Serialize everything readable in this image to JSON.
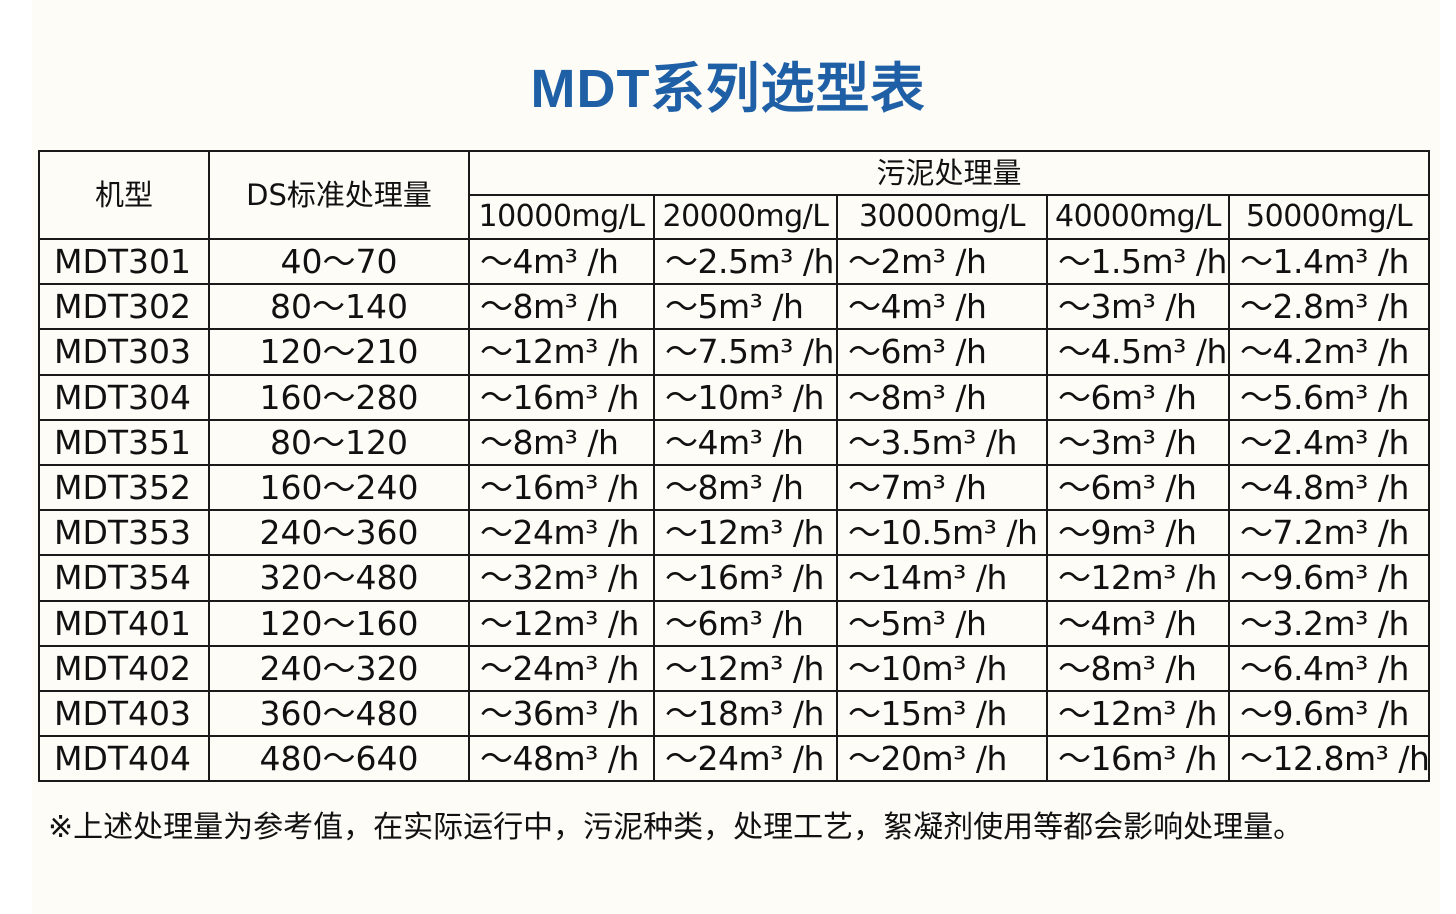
{
  "title": "MDT系列选型表",
  "table": {
    "header": {
      "model": "机型",
      "ds": "DS标准处理量",
      "sludge": "污泥处理量",
      "concentrations": [
        "10000mg/L",
        "20000mg/L",
        "30000mg/L",
        "40000mg/L",
        "50000mg/L"
      ]
    },
    "rows": [
      {
        "model": "MDT301",
        "ds": "40～70",
        "values": [
          "～4m³ /h",
          "～2.5m³ /h",
          "～2m³ /h",
          "～1.5m³ /h",
          "～1.4m³ /h"
        ]
      },
      {
        "model": "MDT302",
        "ds": "80～140",
        "values": [
          "～8m³ /h",
          "～5m³ /h",
          "～4m³ /h",
          "～3m³ /h",
          "～2.8m³ /h"
        ]
      },
      {
        "model": "MDT303",
        "ds": "120～210",
        "values": [
          "～12m³ /h",
          "～7.5m³ /h",
          "～6m³ /h",
          "～4.5m³ /h",
          "～4.2m³ /h"
        ]
      },
      {
        "model": "MDT304",
        "ds": "160～280",
        "values": [
          "～16m³ /h",
          "～10m³ /h",
          "～8m³ /h",
          "～6m³ /h",
          "～5.6m³ /h"
        ]
      },
      {
        "model": "MDT351",
        "ds": "80～120",
        "values": [
          "～8m³ /h",
          "～4m³ /h",
          "～3.5m³ /h",
          "～3m³ /h",
          "～2.4m³ /h"
        ]
      },
      {
        "model": "MDT352",
        "ds": "160～240",
        "values": [
          "～16m³ /h",
          "～8m³ /h",
          "～7m³ /h",
          "～6m³ /h",
          "～4.8m³ /h"
        ]
      },
      {
        "model": "MDT353",
        "ds": "240～360",
        "values": [
          "～24m³ /h",
          "～12m³ /h",
          "～10.5m³ /h",
          "～9m³ /h",
          "～7.2m³ /h"
        ]
      },
      {
        "model": "MDT354",
        "ds": "320～480",
        "values": [
          "～32m³ /h",
          "～16m³ /h",
          "～14m³ /h",
          "～12m³ /h",
          "～9.6m³ /h"
        ]
      },
      {
        "model": "MDT401",
        "ds": "120～160",
        "values": [
          "～12m³ /h",
          "～6m³ /h",
          "～5m³ /h",
          "～4m³ /h",
          "～3.2m³ /h"
        ]
      },
      {
        "model": "MDT402",
        "ds": "240～320",
        "values": [
          "～24m³ /h",
          "～12m³ /h",
          "～10m³ /h",
          "～8m³ /h",
          "～6.4m³ /h"
        ]
      },
      {
        "model": "MDT403",
        "ds": "360～480",
        "values": [
          "～36m³ /h",
          "～18m³ /h",
          "～15m³ /h",
          "～12m³ /h",
          "～9.6m³ /h"
        ]
      },
      {
        "model": "MDT404",
        "ds": "480～640",
        "values": [
          "～48m³ /h",
          "～24m³ /h",
          "～20m³ /h",
          "～16m³ /h",
          "～12.8m³ /h"
        ]
      }
    ]
  },
  "note": "※上述处理量为参考值，在实际运行中，污泥种类，处理工艺，絮凝剂使用等都会影响处理量。",
  "colors": {
    "title": "#1e5fa6",
    "border": "#1a1a1a",
    "background": "#fdfcf7"
  }
}
